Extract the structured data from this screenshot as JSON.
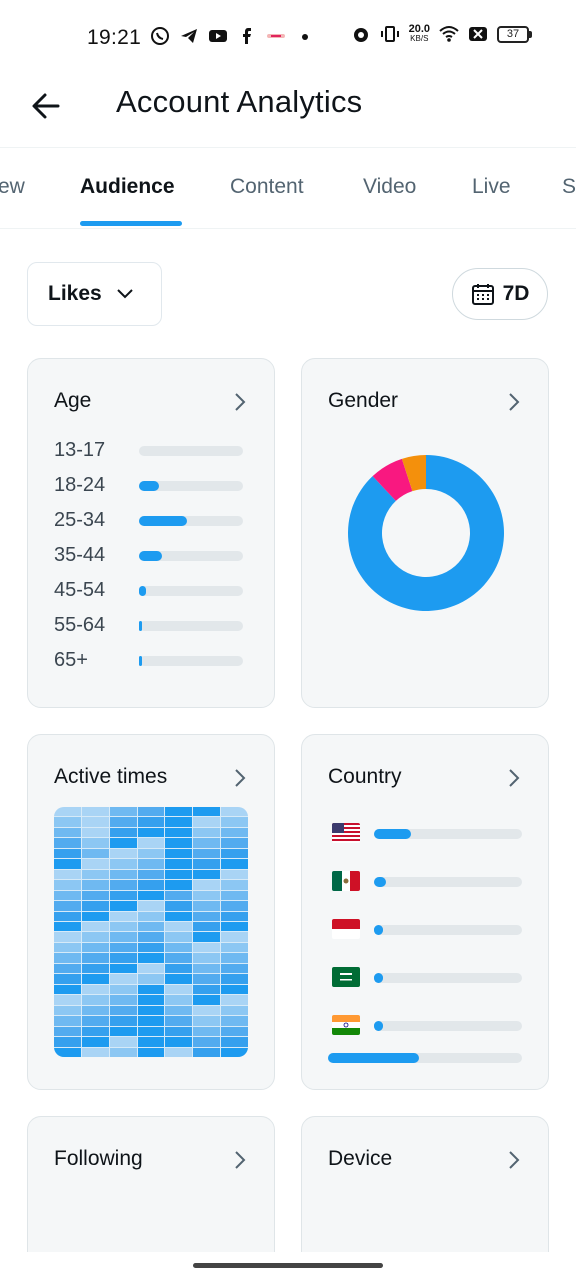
{
  "status_bar": {
    "time": "19:21",
    "network_speed": "20.0",
    "network_unit": "KB/S",
    "battery": "37",
    "icons_left": [
      "whatsapp-icon",
      "telegram-icon",
      "youtube-icon",
      "facebook-icon",
      "app-icon",
      "dot-icon"
    ],
    "icons_right": [
      "alarm-icon",
      "vibrate-icon",
      "wifi-icon",
      "x-icon",
      "battery-icon"
    ]
  },
  "header": {
    "title": "Account Analytics",
    "back_icon": "arrow-left-icon"
  },
  "tabs": [
    {
      "label": "ew",
      "active": false
    },
    {
      "label": "Audience",
      "active": true
    },
    {
      "label": "Content",
      "active": false
    },
    {
      "label": "Video",
      "active": false
    },
    {
      "label": "Live",
      "active": false
    },
    {
      "label": "S",
      "active": false
    }
  ],
  "filters": {
    "metric": "Likes",
    "range": "7D"
  },
  "cards": {
    "age": {
      "title": "Age",
      "rows": [
        {
          "label": "13-17",
          "value": 0.0
        },
        {
          "label": "18-24",
          "value": 0.19
        },
        {
          "label": "25-34",
          "value": 0.46
        },
        {
          "label": "35-44",
          "value": 0.22
        },
        {
          "label": "45-54",
          "value": 0.07
        },
        {
          "label": "55-64",
          "value": 0.03
        },
        {
          "label": "65+",
          "value": 0.01
        }
      ]
    },
    "gender": {
      "title": "Gender",
      "segments": [
        {
          "color": "#1d9bf0",
          "value": 0.88
        },
        {
          "color": "#f91880",
          "value": 0.07
        },
        {
          "color": "#f4900c",
          "value": 0.05
        }
      ]
    },
    "active_times": {
      "title": "Active times",
      "columns": 7,
      "rows": 24
    },
    "country": {
      "title": "Country",
      "rows": [
        {
          "flag": "us-flag-icon",
          "value": 0.25
        },
        {
          "flag": "mexico-flag-icon",
          "value": 0.08
        },
        {
          "flag": "indonesia-flag-icon",
          "value": 0.05
        },
        {
          "flag": "saudi-arabia-flag-icon",
          "value": 0.05
        },
        {
          "flag": "india-flag-icon",
          "value": 0.05
        }
      ],
      "other_value": 0.47
    },
    "following": {
      "title": "Following"
    },
    "device": {
      "title": "Device"
    }
  },
  "colors": {
    "accent": "#1d9bf0",
    "track": "#e2e7ea",
    "card_bg": "#f5f7f8"
  }
}
